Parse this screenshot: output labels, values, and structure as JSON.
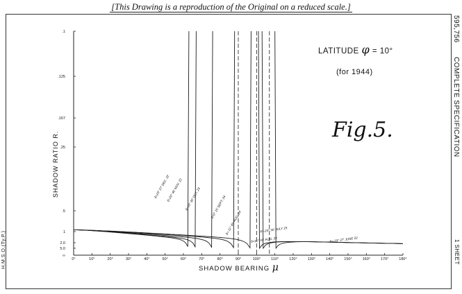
{
  "header_note": "[This Drawing is a reproduction of the Original on a reduced scale.]",
  "side_right": {
    "patent_number": "595,756",
    "spec": "COMPLETE SPECIFICATION",
    "sheet": "1 SHEET"
  },
  "side_left": {
    "printer": "H.M.S.O.(Ty.P.)"
  },
  "annotations": {
    "latitude_text": "LATITUDE",
    "latitude_symbol": "φ",
    "latitude_value": "= 10°",
    "year": "(for 1944)",
    "figure": "Fig.5."
  },
  "chart_data": {
    "type": "line",
    "xlabel_text": "SHADOW BEARING",
    "xlabel_symbol": "μ",
    "ylabel": "SHADOW RATIO   R.",
    "xlim": [
      0,
      180
    ],
    "x_ticks": [
      "0°",
      "10°",
      "20°",
      "30°",
      "40°",
      "50°",
      "60°",
      "70°",
      "80°",
      "90°",
      "100°",
      "110°",
      "120°",
      "130°",
      "140°",
      "150°",
      "160°",
      "170°",
      "180°"
    ],
    "y_ticks": [
      ".1",
      ".125",
      ".167",
      ".25",
      ".5",
      "1",
      "2.0",
      "5.0",
      "∞"
    ],
    "y_tick_values": [
      0.1,
      0.125,
      0.167,
      0.25,
      0.5,
      1,
      2,
      5,
      "inf"
    ],
    "grid": false,
    "asymptote_color": "#1a1a1a",
    "series": [
      {
        "name": "δ=23° 27' DEC. 22",
        "asymptote_deg": 63,
        "side": "left",
        "label_at": [
          45,
          0.42
        ]
      },
      {
        "name": "δ=20° 45' NOV. 22",
        "asymptote_deg": 67,
        "side": "left",
        "label_at": [
          52,
          0.44
        ]
      },
      {
        "name": "δ=10° 30' OCT. 24",
        "asymptote_deg": 76,
        "side": "left",
        "label_at": [
          62,
          0.5
        ]
      },
      {
        "name": "δ=0° 15' SEPT. 24",
        "asymptote_deg": 88,
        "side": "left",
        "label_at": [
          76,
          0.62
        ]
      },
      {
        "name": "δ=-11° 45' AUG. 24",
        "asymptote_deg": 97,
        "side": "left",
        "label_at": [
          84,
          1.2
        ]
      },
      {
        "name": "δ=-20° 30' JULY 23",
        "asymptote_deg": 103,
        "side": "right",
        "label_at": [
          102,
          1.05
        ]
      },
      {
        "name": "δ=-23° 27' JUNE 22",
        "asymptote_deg": 110,
        "side": "right",
        "label_at": [
          140,
          2.0
        ]
      },
      {
        "name": "δ=11° 30' AUG. 22",
        "asymptote_deg": 101,
        "side": "right",
        "label_at": [
          97,
          2.0
        ]
      }
    ]
  }
}
